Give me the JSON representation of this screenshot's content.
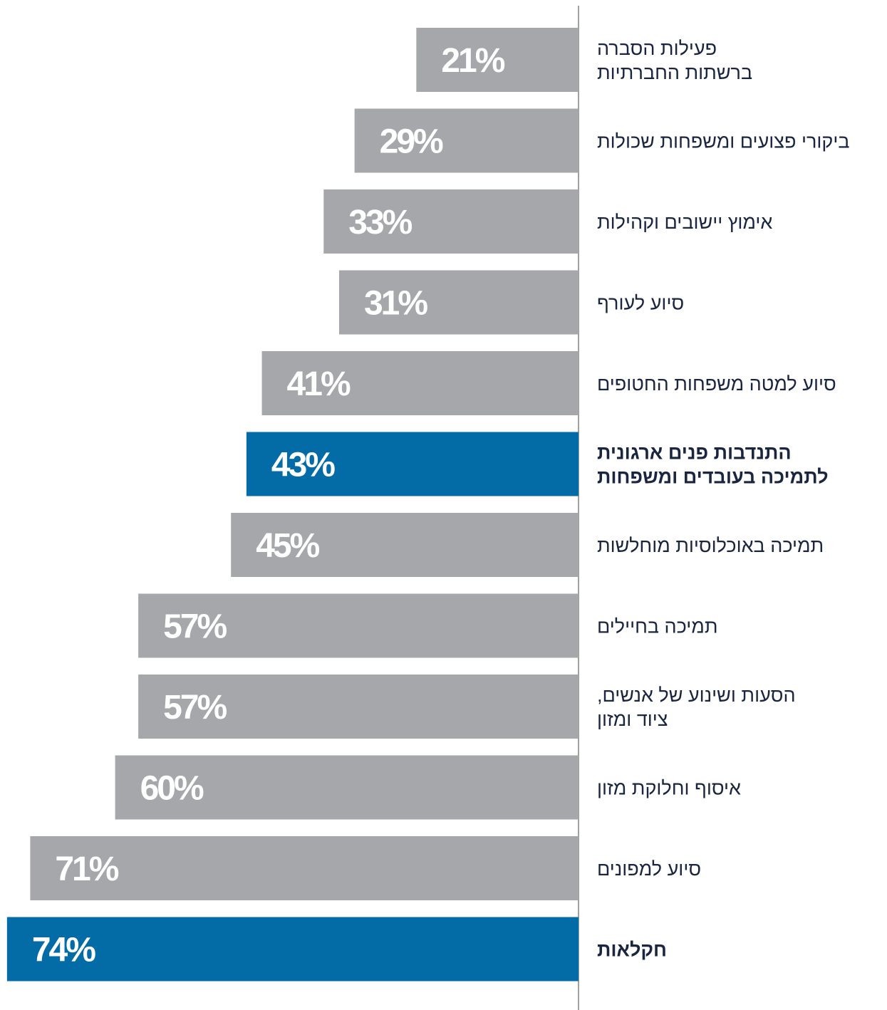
{
  "chart_data": {
    "type": "bar",
    "orientation": "horizontal",
    "direction": "rtl",
    "unit": "%",
    "xlim": [
      0,
      78
    ],
    "grid": false,
    "legend": "none",
    "colors": {
      "default": "#A6A7AB",
      "highlight": "#036CA6",
      "text": "#1A2540",
      "axis": "#A0A0A0"
    },
    "categories": [
      [
        "פעילות הסברה",
        "ברשתות החברתיות"
      ],
      [
        "ביקורי פצועים ומשפחות שכולות"
      ],
      [
        "אימוץ יישובים וקהילות"
      ],
      [
        "סיוע לעורף"
      ],
      [
        "סיוע למטה משפחות החטופים"
      ],
      [
        "התנדבות פנים ארגונית",
        "לתמיכה בעובדים ומשפחות"
      ],
      [
        "תמיכה באוכלוסיות מוחלשות"
      ],
      [
        "תמיכה בחיילים"
      ],
      [
        "הסעות ושינוע של אנשים,",
        "ציוד ומזון"
      ],
      [
        "איסוף וחלוקת מזון"
      ],
      [
        "סיוע למפונים"
      ],
      [
        "חקלאות"
      ]
    ],
    "values": [
      21,
      29,
      33,
      31,
      41,
      43,
      45,
      57,
      57,
      60,
      71,
      74
    ],
    "value_labels": [
      "21%",
      "29%",
      "33%",
      "31%",
      "41%",
      "43%",
      "45%",
      "57%",
      "57%",
      "60%",
      "71%",
      "74%"
    ],
    "highlighted": [
      5,
      11
    ]
  }
}
